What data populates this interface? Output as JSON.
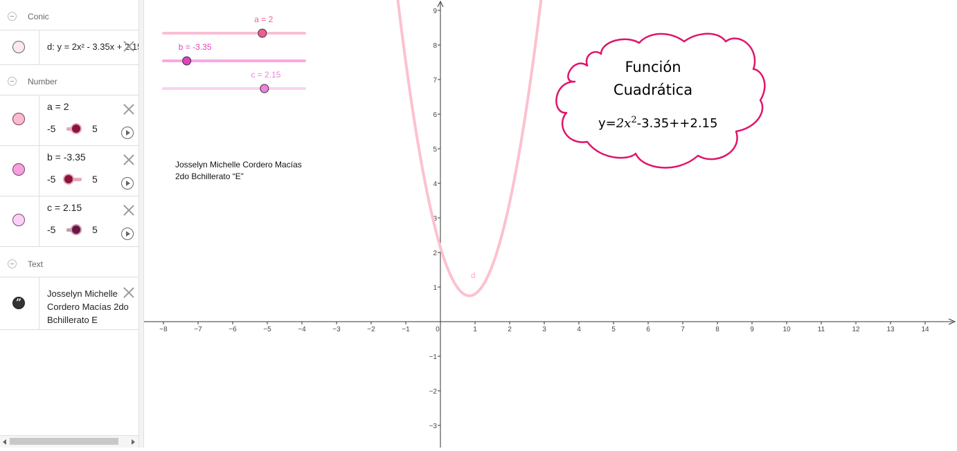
{
  "algebra": {
    "groups": {
      "conic": "Conic",
      "number": "Number",
      "text": "Text"
    },
    "conic_item": {
      "definition": "d: y = 2x² - 3.35x + 2.15",
      "color": "#fde8ec"
    },
    "numbers": [
      {
        "label": "a = 2",
        "min": "-5",
        "max": "5",
        "color": "#f9bcd0",
        "thumb": "#8b1538",
        "value": 2
      },
      {
        "label": "b = -3.35",
        "min": "-5",
        "max": "5",
        "color": "#f7a0dd",
        "thumb": "#8b1538",
        "value": -3.35
      },
      {
        "label": "c = 2.15",
        "min": "-5",
        "max": "5",
        "color": "#fbd0f4",
        "thumb": "#6b1540",
        "value": 2.15
      }
    ],
    "text_item": {
      "line1": "Josselyn Michelle",
      "line2": "Cordero Macías 2do",
      "line3": "Bchillerato E"
    }
  },
  "graphics": {
    "sliders": [
      {
        "label": "a = 2",
        "value": 2,
        "min": -5,
        "max": 5,
        "color": "#f35b94",
        "track": "#f9c0d4"
      },
      {
        "label": "b = -3.35",
        "value": -3.35,
        "min": -5,
        "max": 5,
        "color": "#e340c0",
        "track": "#f6a8e3"
      },
      {
        "label": "c = 2.15",
        "value": 2.15,
        "min": -5,
        "max": 5,
        "color": "#f080e2",
        "track": "#fad2f4"
      }
    ],
    "curve_label": "d",
    "curve_color": "#fcc1cf",
    "x_ticks": [
      "−8",
      "−7",
      "−6",
      "−5",
      "−4",
      "−3",
      "−2",
      "−1",
      "0",
      "1",
      "2",
      "3",
      "4",
      "5",
      "6",
      "7",
      "8",
      "9",
      "10",
      "11",
      "12",
      "13",
      "14"
    ],
    "y_ticks": [
      "9",
      "8",
      "7",
      "6",
      "5",
      "4",
      "3",
      "2",
      "1",
      "−1",
      "−2",
      "−3"
    ],
    "credit_line1": "Josselyn Michelle Cordero Macías",
    "credit_line2": "2do Bchillerato “E”",
    "cloud": {
      "title_line1": "Función",
      "title_line2": "Cuadrática",
      "eq_prefix": "y=",
      "eq_math": "2x",
      "eq_exp": "2",
      "eq_rest": "-3.35++2.15",
      "stroke": "#e0146a"
    }
  }
}
